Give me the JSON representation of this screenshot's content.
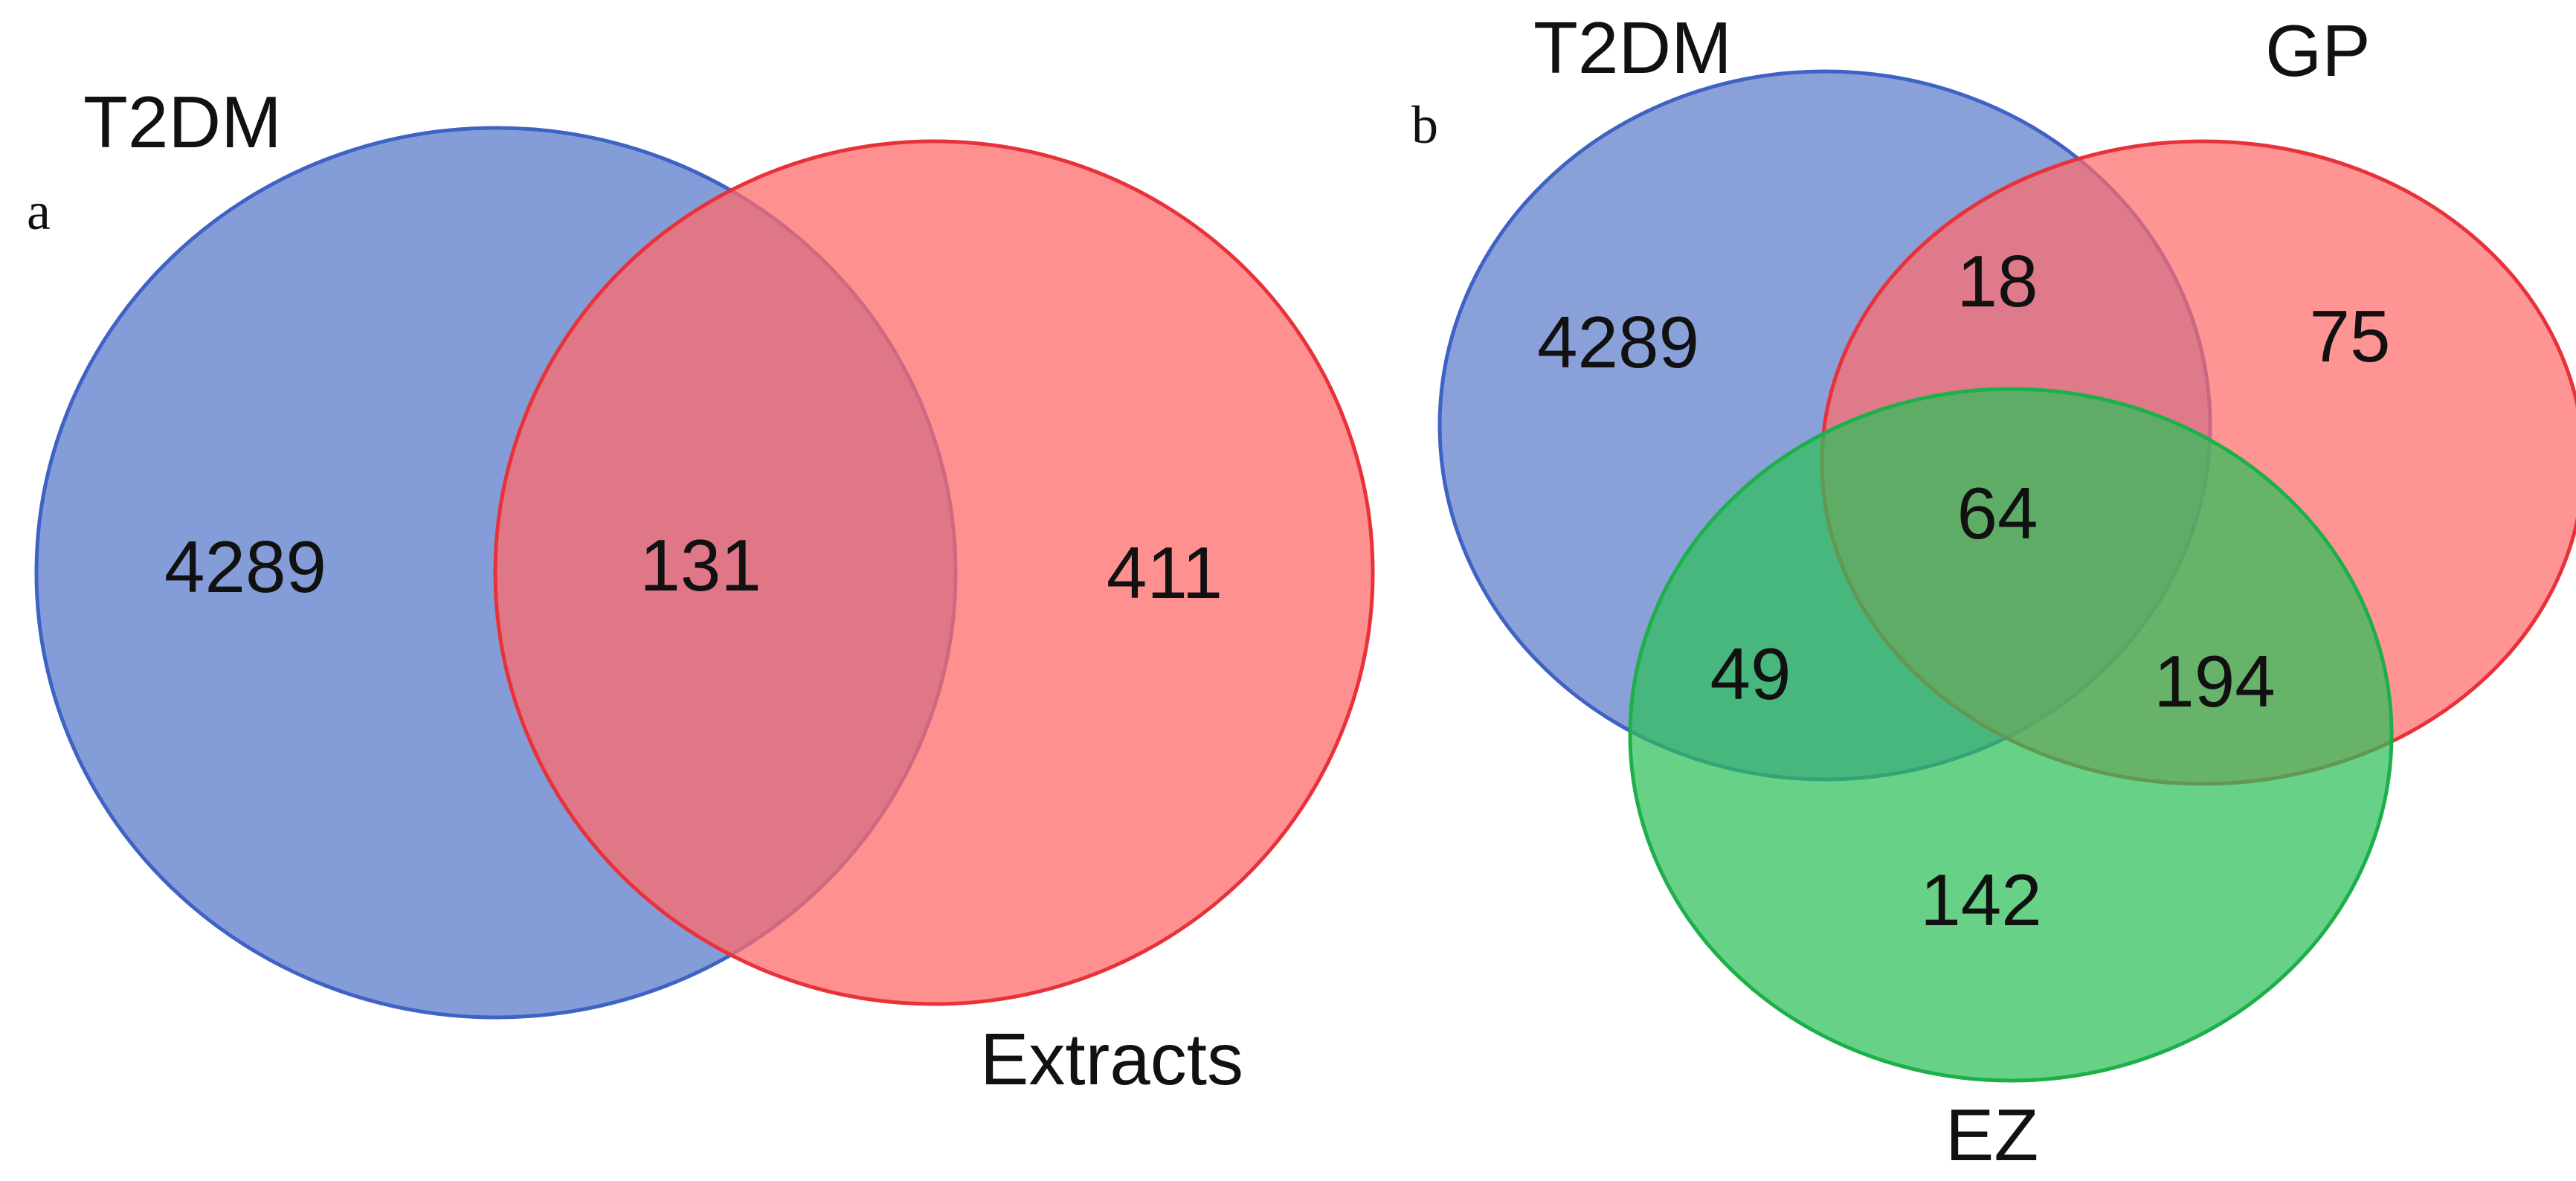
{
  "panels": {
    "a": {
      "letter": "a",
      "sets": {
        "t2dm": {
          "label": "T2DM",
          "color": "#5B7CCB",
          "stroke": "#3F63C4"
        },
        "extracts": {
          "label": "Extracts",
          "color": "#FF6B6B",
          "stroke": "#E8323A"
        }
      },
      "regions": {
        "t2dm_only": "4289",
        "t2dm_extracts": "131",
        "extracts_only": "411"
      }
    },
    "b": {
      "letter": "b",
      "sets": {
        "t2dm": {
          "label": "T2DM",
          "color": "#5B7CCB",
          "stroke": "#3F63C4"
        },
        "gp": {
          "label": "GP",
          "color": "#FF6B6B",
          "stroke": "#E8323A"
        },
        "ez": {
          "label": "EZ",
          "color": "#2EBF5A",
          "stroke": "#1DB04A"
        }
      },
      "regions": {
        "t2dm_only": "4289",
        "t2dm_gp": "18",
        "gp_only": "75",
        "all_three": "64",
        "t2dm_ez": "49",
        "gp_ez": "194",
        "ez_only": "142"
      }
    }
  }
}
